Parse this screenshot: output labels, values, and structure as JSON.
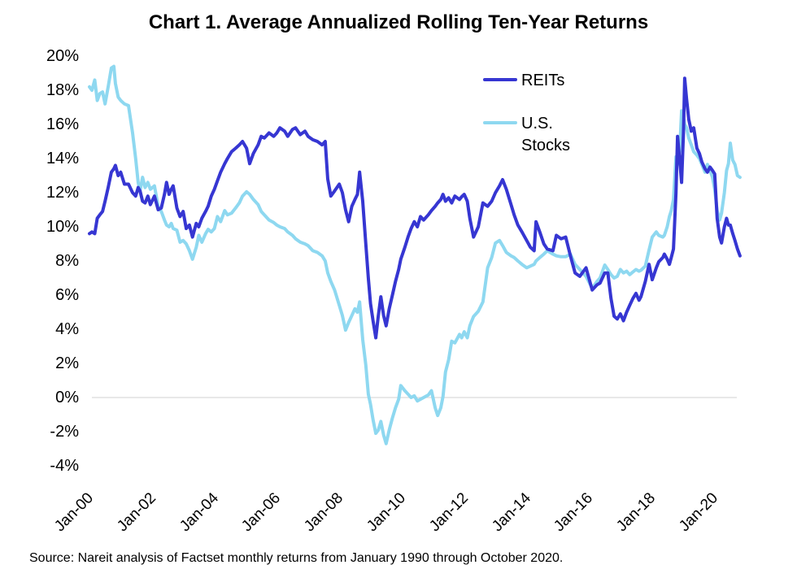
{
  "chart": {
    "title": "Chart 1. Average Annualized Rolling Ten-Year Returns",
    "source_note": "Source: Nareit analysis of Factset monthly returns from January 1990 through October 2020.",
    "legend": {
      "items": [
        {
          "label": "REITs",
          "color": "#3636d2"
        },
        {
          "label": "U.S. Stocks",
          "color": "#8ed8f0"
        }
      ]
    },
    "axes": {
      "y_ticks": [
        "20%",
        "18%",
        "16%",
        "14%",
        "12%",
        "10%",
        "8%",
        "6%",
        "4%",
        "2%",
        "0%",
        "-2%",
        "-4%"
      ],
      "x_ticks": [
        "Jan-00",
        "Jan-02",
        "Jan-04",
        "Jan-06",
        "Jan-08",
        "Jan-10",
        "Jan-12",
        "Jan-14",
        "Jan-16",
        "Jan-18",
        "Jan-20"
      ]
    },
    "zero_line_color": "#d9d9d9"
  },
  "chart_data": {
    "type": "line",
    "title": "Chart 1. Average Annualized Rolling Ten-Year Returns",
    "xlabel": "",
    "ylabel": "",
    "y_unit": "percent",
    "ylim": [
      -4,
      20
    ],
    "y_tick_step": 2,
    "xlim": [
      2000.0,
      2020.83
    ],
    "grid": "horizontal zero line only",
    "legend_position": "upper right inside plot",
    "x": [
      2000.0,
      2000.08,
      2000.17,
      2000.25,
      2000.33,
      2000.42,
      2000.5,
      2000.6,
      2000.7,
      2000.78,
      2000.83,
      2000.92,
      2001.0,
      2001.12,
      2001.25,
      2001.38,
      2001.48,
      2001.56,
      2001.62,
      2001.7,
      2001.78,
      2001.87,
      2001.95,
      2002.08,
      2002.2,
      2002.3,
      2002.4,
      2002.47,
      2002.55,
      2002.62,
      2002.68,
      2002.8,
      2002.9,
      2003.0,
      2003.1,
      2003.2,
      2003.3,
      2003.42,
      2003.5,
      2003.6,
      2003.72,
      2003.8,
      2003.9,
      2004.0,
      2004.1,
      2004.2,
      2004.33,
      2004.42,
      2004.55,
      2004.68,
      2004.8,
      2004.9,
      2005.03,
      2005.13,
      2005.25,
      2005.4,
      2005.5,
      2005.6,
      2005.75,
      2005.9,
      2006.0,
      2006.1,
      2006.25,
      2006.35,
      2006.5,
      2006.6,
      2006.75,
      2006.9,
      2007.0,
      2007.15,
      2007.3,
      2007.45,
      2007.55,
      2007.63,
      2007.73,
      2007.85,
      2008.0,
      2008.1,
      2008.2,
      2008.3,
      2008.4,
      2008.5,
      2008.58,
      2008.65,
      2008.75,
      2008.85,
      2008.93,
      2009.0,
      2009.08,
      2009.17,
      2009.25,
      2009.33,
      2009.42,
      2009.5,
      2009.6,
      2009.7,
      2009.8,
      2009.9,
      2009.97,
      2010.1,
      2010.2,
      2010.3,
      2010.4,
      2010.5,
      2010.6,
      2010.7,
      2010.85,
      2010.95,
      2011.07,
      2011.15,
      2011.25,
      2011.32,
      2011.4,
      2011.5,
      2011.6,
      2011.7,
      2011.85,
      2011.92,
      2012.0,
      2012.1,
      2012.18,
      2012.3,
      2012.45,
      2012.6,
      2012.75,
      2012.88,
      2013.0,
      2013.13,
      2013.23,
      2013.35,
      2013.5,
      2013.6,
      2013.72,
      2013.85,
      2014.0,
      2014.12,
      2014.24,
      2014.3,
      2014.42,
      2014.55,
      2014.66,
      2014.84,
      2014.95,
      2015.1,
      2015.25,
      2015.4,
      2015.55,
      2015.7,
      2015.9,
      2016.1,
      2016.25,
      2016.35,
      2016.5,
      2016.6,
      2016.7,
      2016.8,
      2016.9,
      2017.0,
      2017.1,
      2017.2,
      2017.3,
      2017.4,
      2017.5,
      2017.6,
      2017.66,
      2017.8,
      2017.92,
      2018.02,
      2018.15,
      2018.23,
      2018.36,
      2018.41,
      2018.5,
      2018.57,
      2018.63,
      2018.7,
      2018.78,
      2018.83,
      2018.9,
      2018.96,
      2019.02,
      2019.06,
      2019.12,
      2019.19,
      2019.27,
      2019.35,
      2019.45,
      2019.53,
      2019.61,
      2019.71,
      2019.79,
      2019.87,
      2019.95,
      2020.02,
      2020.1,
      2020.18,
      2020.24,
      2020.33,
      2020.4,
      2020.46,
      2020.52,
      2020.6,
      2020.67,
      2020.75,
      2020.83
    ],
    "series": [
      {
        "name": "REITs",
        "color": "#3636d2",
        "values": [
          9.6,
          9.7,
          9.6,
          10.5,
          10.7,
          10.9,
          11.5,
          12.3,
          13.2,
          13.4,
          13.6,
          13.0,
          13.2,
          12.5,
          12.5,
          12.0,
          11.8,
          12.3,
          12.1,
          11.5,
          11.4,
          11.8,
          11.3,
          11.8,
          11.0,
          11.1,
          11.9,
          12.6,
          11.9,
          12.2,
          12.4,
          11.1,
          10.6,
          10.9,
          9.9,
          10.1,
          9.4,
          10.2,
          10.0,
          10.5,
          10.9,
          11.2,
          11.8,
          12.2,
          12.7,
          13.2,
          13.7,
          14.0,
          14.4,
          14.6,
          14.8,
          15.0,
          14.6,
          13.7,
          14.3,
          14.8,
          15.3,
          15.2,
          15.5,
          15.3,
          15.5,
          15.8,
          15.6,
          15.3,
          15.7,
          15.8,
          15.4,
          15.6,
          15.3,
          15.1,
          15.0,
          14.8,
          15.0,
          12.8,
          11.8,
          12.1,
          12.5,
          12.0,
          11.0,
          10.3,
          11.2,
          11.6,
          11.9,
          13.2,
          11.5,
          9.0,
          7.0,
          5.5,
          4.5,
          3.5,
          4.8,
          5.9,
          4.8,
          4.2,
          5.2,
          6.0,
          6.8,
          7.5,
          8.1,
          8.8,
          9.4,
          9.9,
          10.3,
          10.0,
          10.6,
          10.4,
          10.7,
          10.95,
          11.2,
          11.4,
          11.6,
          11.9,
          11.5,
          11.7,
          11.4,
          11.8,
          11.6,
          11.76,
          11.9,
          11.5,
          10.5,
          9.4,
          10.0,
          11.4,
          11.2,
          11.5,
          12.0,
          12.4,
          12.76,
          12.2,
          11.3,
          10.7,
          10.1,
          9.7,
          9.2,
          8.8,
          8.6,
          10.3,
          9.7,
          9.0,
          8.7,
          8.6,
          9.5,
          9.3,
          9.4,
          8.3,
          7.3,
          7.1,
          7.6,
          6.3,
          6.6,
          6.7,
          7.3,
          7.3,
          5.8,
          4.76,
          4.6,
          4.9,
          4.5,
          5.0,
          5.4,
          5.8,
          6.1,
          5.7,
          5.9,
          6.8,
          7.8,
          6.9,
          7.6,
          7.95,
          8.2,
          8.4,
          8.1,
          7.8,
          8.2,
          8.7,
          12.0,
          15.3,
          13.9,
          12.6,
          15.5,
          18.7,
          17.5,
          16.3,
          15.6,
          15.8,
          14.6,
          14.3,
          13.8,
          13.4,
          13.2,
          13.5,
          13.3,
          13.1,
          10.5,
          9.4,
          9.05,
          10.0,
          10.5,
          10.1,
          10.1,
          9.6,
          9.2,
          8.7,
          8.3
        ]
      },
      {
        "name": "U.S. Stocks",
        "color": "#8ed8f0",
        "values": [
          18.2,
          18.0,
          18.6,
          17.4,
          17.8,
          17.9,
          17.2,
          18.2,
          19.3,
          19.4,
          18.4,
          17.6,
          17.4,
          17.2,
          17.1,
          15.5,
          14.0,
          12.6,
          12.1,
          12.9,
          12.3,
          12.6,
          12.2,
          12.4,
          11.2,
          10.9,
          10.4,
          10.1,
          10.0,
          10.2,
          9.9,
          9.8,
          9.1,
          9.2,
          9.0,
          8.6,
          8.1,
          8.8,
          9.5,
          9.1,
          9.6,
          9.85,
          9.7,
          9.9,
          10.6,
          10.3,
          10.95,
          10.7,
          10.8,
          11.1,
          11.4,
          11.8,
          12.05,
          11.9,
          11.6,
          11.3,
          10.9,
          10.7,
          10.4,
          10.25,
          10.1,
          10.0,
          9.9,
          9.7,
          9.5,
          9.3,
          9.1,
          9.0,
          8.9,
          8.6,
          8.5,
          8.3,
          8.0,
          7.3,
          6.8,
          6.3,
          5.4,
          4.8,
          3.95,
          4.4,
          4.8,
          5.2,
          5.0,
          5.6,
          3.4,
          1.9,
          0.2,
          -0.4,
          -1.3,
          -2.1,
          -1.9,
          -1.4,
          -2.2,
          -2.7,
          -1.9,
          -1.2,
          -0.6,
          -0.1,
          0.7,
          0.4,
          0.2,
          0.0,
          0.1,
          -0.2,
          -0.1,
          0.0,
          0.15,
          0.4,
          -0.6,
          -1.05,
          -0.6,
          0.05,
          1.5,
          2.2,
          3.3,
          3.2,
          3.7,
          3.5,
          3.85,
          3.5,
          4.2,
          4.75,
          5.05,
          5.6,
          7.6,
          8.2,
          9.05,
          9.2,
          8.9,
          8.5,
          8.3,
          8.2,
          8.0,
          7.8,
          7.6,
          7.7,
          7.8,
          8.0,
          8.2,
          8.4,
          8.6,
          8.4,
          8.3,
          8.25,
          8.25,
          8.4,
          7.8,
          7.5,
          7.1,
          6.4,
          6.8,
          7.0,
          7.76,
          7.5,
          7.2,
          7.0,
          7.1,
          7.5,
          7.3,
          7.4,
          7.2,
          7.35,
          7.5,
          7.4,
          7.45,
          7.7,
          8.65,
          9.4,
          9.7,
          9.5,
          9.4,
          9.5,
          10.0,
          10.6,
          10.95,
          11.6,
          14.1,
          13.65,
          14.5,
          16.8,
          16.4,
          16.0,
          15.8,
          15.2,
          14.8,
          14.4,
          14.2,
          14.0,
          13.65,
          13.2,
          13.65,
          13.3,
          12.9,
          12.2,
          10.95,
          10.4,
          10.8,
          12.0,
          13.3,
          13.7,
          14.9,
          13.9,
          13.65,
          13.0,
          12.9
        ]
      }
    ]
  }
}
